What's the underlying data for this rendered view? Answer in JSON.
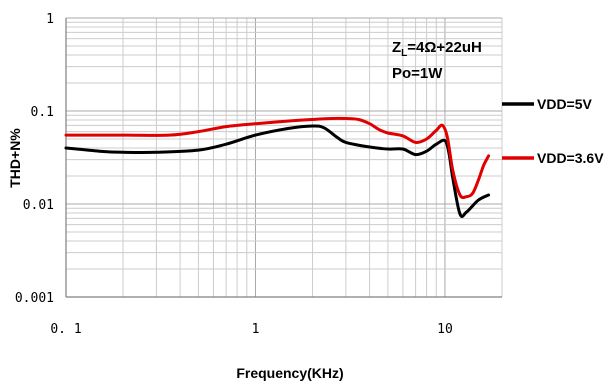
{
  "chart_data": {
    "type": "line",
    "title": "",
    "xlabel": "Frequency(KHz)",
    "ylabel": "THD+N%",
    "x_scale": "log",
    "y_scale": "log",
    "xlim": [
      0.1,
      20
    ],
    "ylim": [
      0.001,
      1
    ],
    "x_ticks": [
      {
        "value": 0.1,
        "label": "0. 1"
      },
      {
        "value": 1,
        "label": "1"
      },
      {
        "value": 10,
        "label": "10"
      }
    ],
    "y_ticks": [
      {
        "value": 1,
        "label": "1"
      },
      {
        "value": 0.1,
        "label": "0.1"
      },
      {
        "value": 0.01,
        "label": "0.01"
      },
      {
        "value": 0.001,
        "label": "0.001"
      }
    ],
    "grid": true,
    "annotation": {
      "line1_prefix": "Z",
      "line1_sub": "L",
      "line1_suffix": "=4Ω+22uH",
      "line2": "Po=1W"
    },
    "legend_position": "right",
    "series": [
      {
        "name": "VDD=5V",
        "color": "#000000",
        "x": [
          0.1,
          0.15,
          0.2,
          0.3,
          0.5,
          0.7,
          1.0,
          1.5,
          2.0,
          2.3,
          2.7,
          3.0,
          4.0,
          5.0,
          6.0,
          7.0,
          8.0,
          9.0,
          10.0,
          10.5,
          11.0,
          12.0,
          13.0,
          15.0,
          17.0
        ],
        "y": [
          0.04,
          0.037,
          0.036,
          0.036,
          0.038,
          0.044,
          0.055,
          0.065,
          0.069,
          0.066,
          0.052,
          0.046,
          0.041,
          0.039,
          0.039,
          0.034,
          0.037,
          0.044,
          0.048,
          0.035,
          0.019,
          0.0078,
          0.0082,
          0.011,
          0.0125
        ]
      },
      {
        "name": "VDD=3.6V",
        "color": "#e00000",
        "x": [
          0.1,
          0.2,
          0.35,
          0.5,
          0.7,
          1.0,
          1.5,
          2.0,
          2.5,
          3.0,
          3.5,
          4.0,
          4.5,
          5.0,
          6.0,
          7.0,
          8.0,
          9.0,
          9.7,
          10.3,
          11.0,
          12.0,
          13.0,
          14.0,
          15.0,
          16.0,
          17.0
        ],
        "y": [
          0.055,
          0.055,
          0.055,
          0.06,
          0.068,
          0.073,
          0.078,
          0.081,
          0.083,
          0.083,
          0.081,
          0.073,
          0.063,
          0.058,
          0.054,
          0.046,
          0.05,
          0.062,
          0.07,
          0.052,
          0.023,
          0.0125,
          0.012,
          0.013,
          0.018,
          0.026,
          0.033
        ]
      }
    ]
  }
}
